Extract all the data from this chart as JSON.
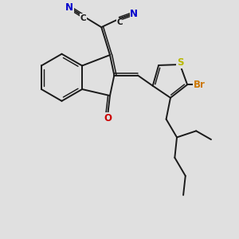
{
  "bg_color": "#e0e0e0",
  "bond_color": "#1a1a1a",
  "bond_width": 1.4,
  "N_color": "#0000cc",
  "O_color": "#cc0000",
  "S_color": "#b8b800",
  "Br_color": "#cc7700",
  "C_color": "#1a1a1a",
  "font_size": 8,
  "figsize": [
    3.0,
    3.0
  ],
  "dpi": 100,
  "xlim": [
    -4,
    6
  ],
  "ylim": [
    -6,
    5
  ]
}
